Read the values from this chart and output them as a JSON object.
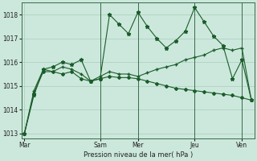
{
  "xlabel": "Pression niveau de la mer( hPa )",
  "background_color": "#cce8dc",
  "grid_color": "#aaccbb",
  "line_color": "#1a5c2a",
  "ylim": [
    1012.8,
    1018.5
  ],
  "xlim": [
    -0.3,
    24.3
  ],
  "day_labels": [
    "Mar",
    "Sam",
    "Mer",
    "Jeu",
    "Ven"
  ],
  "day_positions": [
    0,
    8,
    12,
    18,
    23
  ],
  "vline_positions": [
    8,
    12,
    18,
    23
  ],
  "series1": [
    1013.0,
    1014.6,
    1015.7,
    1015.8,
    1016.0,
    1015.9,
    1016.1,
    1015.2,
    1015.3,
    1018.0,
    1017.6,
    1017.2,
    1018.1,
    1017.5,
    1017.0,
    1016.6,
    1016.9,
    1017.3,
    1018.3,
    1017.7,
    1017.1,
    1016.7,
    1015.3,
    1016.1,
    1014.4
  ],
  "series2": [
    1013.0,
    1014.8,
    1015.7,
    1015.6,
    1015.8,
    1015.7,
    1015.5,
    1015.2,
    1015.4,
    1015.6,
    1015.5,
    1015.5,
    1015.4,
    1015.55,
    1015.7,
    1015.8,
    1015.9,
    1016.1,
    1016.2,
    1016.3,
    1016.5,
    1016.6,
    1016.5,
    1016.6,
    1014.4
  ],
  "series3": [
    1013.0,
    1014.7,
    1015.6,
    1015.6,
    1015.5,
    1015.6,
    1015.3,
    1015.2,
    1015.3,
    1015.4,
    1015.35,
    1015.35,
    1015.3,
    1015.2,
    1015.1,
    1015.0,
    1014.9,
    1014.85,
    1014.8,
    1014.75,
    1014.7,
    1014.65,
    1014.6,
    1014.5,
    1014.4
  ],
  "yticks": [
    1013,
    1014,
    1015,
    1016,
    1017,
    1018
  ],
  "n_points": 25
}
